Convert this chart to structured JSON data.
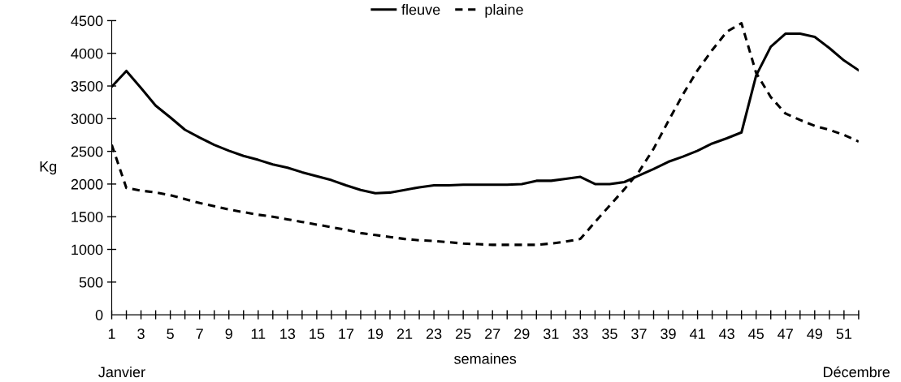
{
  "chart_data": {
    "type": "line",
    "x": [
      1,
      2,
      3,
      4,
      5,
      6,
      7,
      8,
      9,
      10,
      11,
      12,
      13,
      14,
      15,
      16,
      17,
      18,
      19,
      20,
      21,
      22,
      23,
      24,
      25,
      26,
      27,
      28,
      29,
      30,
      31,
      32,
      33,
      34,
      35,
      36,
      37,
      38,
      39,
      40,
      41,
      42,
      43,
      44,
      45,
      46,
      47,
      48,
      49,
      50,
      51,
      52
    ],
    "series": [
      {
        "name": "fleuve",
        "color": "#000000",
        "line_style": "solid",
        "values": [
          3490,
          3730,
          3470,
          3200,
          3020,
          2830,
          2710,
          2600,
          2510,
          2430,
          2370,
          2300,
          2250,
          2180,
          2120,
          2060,
          1980,
          1910,
          1860,
          1870,
          1910,
          1950,
          1980,
          1980,
          1990,
          1990,
          1990,
          1990,
          2000,
          2050,
          2050,
          2080,
          2110,
          2000,
          2000,
          2030,
          2130,
          2230,
          2340,
          2420,
          2510,
          2620,
          2700,
          2790,
          3660,
          4100,
          4300,
          4300,
          4250,
          4080,
          3890,
          3740
        ]
      },
      {
        "name": "plaine",
        "color": "#000000",
        "line_style": "dashed",
        "values": [
          2600,
          1940,
          1900,
          1870,
          1830,
          1770,
          1710,
          1660,
          1610,
          1570,
          1530,
          1500,
          1460,
          1420,
          1380,
          1340,
          1300,
          1250,
          1220,
          1190,
          1160,
          1140,
          1130,
          1110,
          1090,
          1080,
          1070,
          1070,
          1070,
          1070,
          1090,
          1120,
          1160,
          1420,
          1670,
          1920,
          2190,
          2540,
          2960,
          3370,
          3740,
          4050,
          4330,
          4460,
          3700,
          3330,
          3080,
          2980,
          2890,
          2830,
          2750,
          2650
        ]
      }
    ],
    "xlabel": "semaines",
    "ylabel": "Kg",
    "annotations": [
      "Janvier",
      "Décembre"
    ],
    "xlim": [
      1,
      52
    ],
    "xticks": [
      1,
      {
        "value": 2,
        "label": null
      },
      3,
      {
        "value": 4,
        "label": null
      },
      5,
      {
        "value": 6,
        "label": null
      },
      7,
      {
        "value": 8,
        "label": null
      },
      9,
      {
        "value": 10,
        "label": null
      },
      11,
      {
        "value": 12,
        "label": null
      },
      13,
      {
        "value": 14,
        "label": null
      },
      15,
      {
        "value": 16,
        "label": null
      },
      17,
      {
        "value": 18,
        "label": null
      },
      19,
      {
        "value": 20,
        "label": null
      },
      21,
      {
        "value": 22,
        "label": null
      },
      23,
      {
        "value": 24,
        "label": null
      },
      25,
      {
        "value": 26,
        "label": null
      },
      27,
      {
        "value": 28,
        "label": null
      },
      29,
      {
        "value": 30,
        "label": null
      },
      31,
      {
        "value": 32,
        "label": null
      },
      33,
      {
        "value": 34,
        "label": null
      },
      35,
      {
        "value": 36,
        "label": null
      },
      37,
      {
        "value": 38,
        "label": null
      },
      39,
      {
        "value": 40,
        "label": null
      },
      41,
      {
        "value": 42,
        "label": null
      },
      43,
      {
        "value": 44,
        "label": null
      },
      45,
      {
        "value": 46,
        "label": null
      },
      47,
      {
        "value": 48,
        "label": null
      },
      49,
      {
        "value": 50,
        "label": null
      },
      51,
      {
        "value": 52,
        "label": null
      }
    ],
    "ylim": [
      0,
      4500
    ],
    "yticks": [
      0,
      500,
      1000,
      1500,
      2000,
      2500,
      3000,
      3500,
      4000,
      4500
    ],
    "grid": false,
    "legend": "top",
    "marker": "none"
  }
}
